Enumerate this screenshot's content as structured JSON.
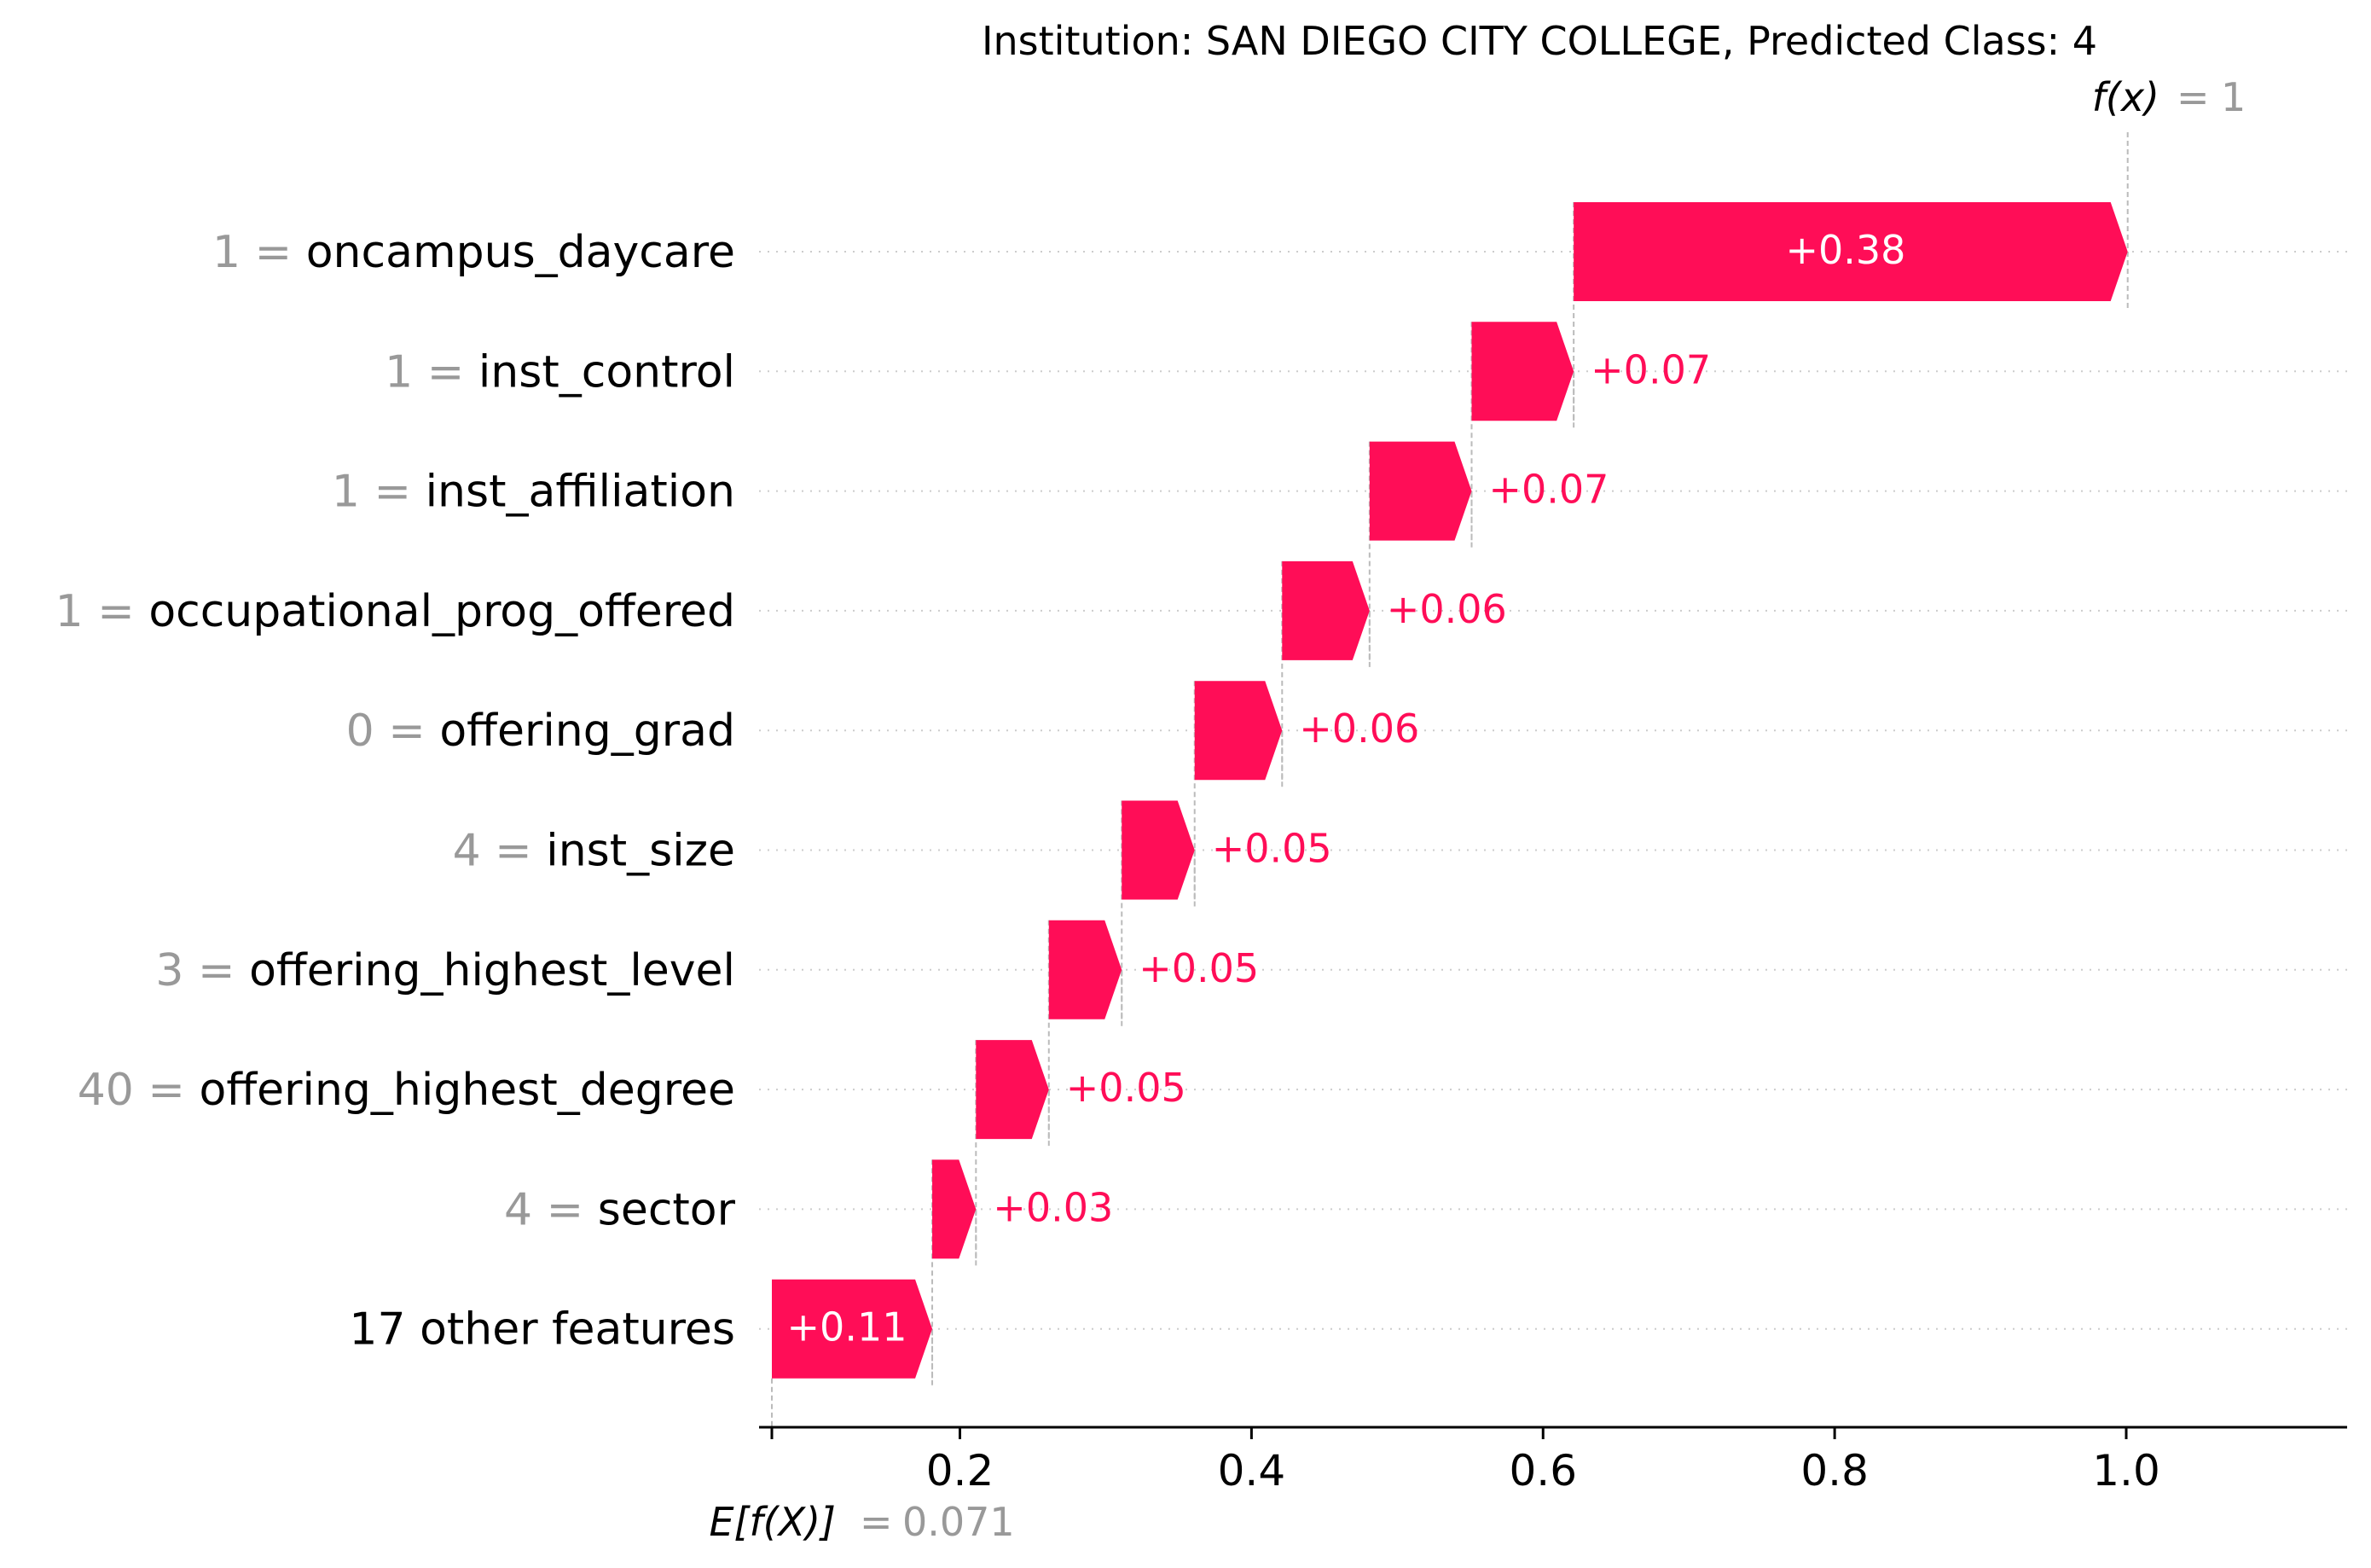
{
  "chart_data": {
    "type": "waterfall",
    "title": "Institution: SAN DIEGO CITY COLLEGE, Predicted Class: 4",
    "fx_label": "f(x)",
    "fx_value": "1",
    "base_label": "E[f(X)]",
    "base_value": 0.071,
    "base_value_text": "0.071",
    "xlim": [
      0.06,
      1.15
    ],
    "xticks": [
      0.2,
      0.4,
      0.6,
      0.8,
      1.0
    ],
    "xtick_labels": [
      "0.2",
      "0.4",
      "0.6",
      "0.8",
      "1.0"
    ],
    "colors": {
      "positive": "#ff0d57",
      "value_text": "#999999",
      "label_text": "#000000",
      "grid": "#cccccc"
    },
    "features": [
      {
        "value": "1",
        "name": "oncampus_daycare",
        "contribution": 0.38,
        "label": "+0.38"
      },
      {
        "value": "1",
        "name": "inst_control",
        "contribution": 0.07,
        "label": "+0.07"
      },
      {
        "value": "1",
        "name": "inst_affiliation",
        "contribution": 0.07,
        "label": "+0.07"
      },
      {
        "value": "1",
        "name": "occupational_prog_offered",
        "contribution": 0.06,
        "label": "+0.06"
      },
      {
        "value": "0",
        "name": "offering_grad",
        "contribution": 0.06,
        "label": "+0.06"
      },
      {
        "value": "4",
        "name": "inst_size",
        "contribution": 0.05,
        "label": "+0.05"
      },
      {
        "value": "3",
        "name": "offering_highest_level",
        "contribution": 0.05,
        "label": "+0.05"
      },
      {
        "value": "40",
        "name": "offering_highest_degree",
        "contribution": 0.05,
        "label": "+0.05"
      },
      {
        "value": "4",
        "name": "sector",
        "contribution": 0.03,
        "label": "+0.03"
      },
      {
        "value": "",
        "name": "17 other features",
        "contribution": 0.11,
        "label": "+0.11"
      }
    ]
  }
}
